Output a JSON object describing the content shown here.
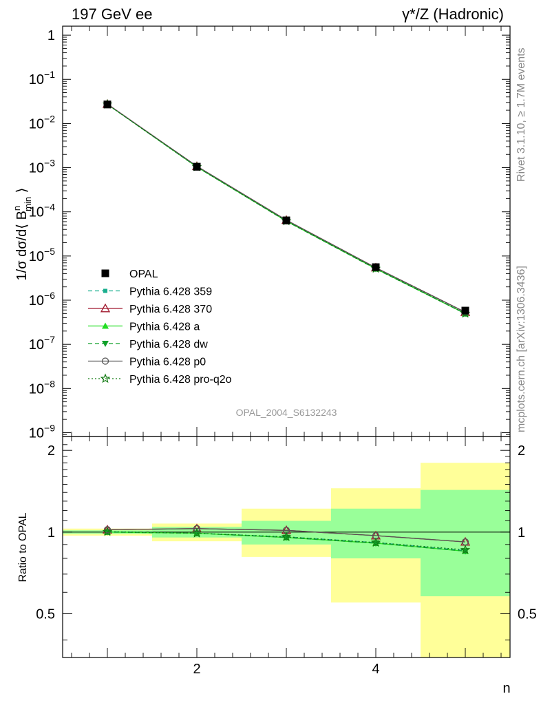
{
  "header": {
    "left": "197 GeV ee",
    "right": "γ*/Z (Hadronic)"
  },
  "side": {
    "rivet": "Rivet 3.1.10, ≥ 1.7M events",
    "mcplots": "mcplots.cern.ch [arXiv:1306.3436]"
  },
  "watermark": "OPAL_2004_S6132243",
  "chart_data": [
    {
      "type": "line",
      "panel": "main",
      "ylabel": "1/σ dσ/d⟨ B^n_min ⟩",
      "yscale": "log",
      "xlim": [
        0.5,
        5.5
      ],
      "ylim": [
        7e-10,
        2
      ],
      "y_ticks": [
        {
          "base": "1",
          "exp": ""
        },
        {
          "base": "10",
          "exp": "−1"
        },
        {
          "base": "10",
          "exp": "−2"
        },
        {
          "base": "10",
          "exp": "−3"
        },
        {
          "base": "10",
          "exp": "−4"
        },
        {
          "base": "10",
          "exp": "−5"
        },
        {
          "base": "10",
          "exp": "−6"
        },
        {
          "base": "10",
          "exp": "−7"
        },
        {
          "base": "10",
          "exp": "−8"
        },
        {
          "base": "10",
          "exp": "−9"
        }
      ],
      "x": [
        1,
        2,
        3,
        4,
        5
      ],
      "series": [
        {
          "name": "OPAL",
          "values": [
            0.027,
            0.00105,
            6.4e-05,
            5.6e-06,
            5.8e-07
          ],
          "color": "#000000",
          "marker": "square"
        },
        {
          "name": "Pythia 6.428 359",
          "values": [
            0.0272,
            0.00104,
            6.2e-05,
            5.2e-06,
            5e-07
          ],
          "color": "#1aae8e",
          "marker": "small-square",
          "dash": "dashed"
        },
        {
          "name": "Pythia 6.428 370",
          "values": [
            0.0275,
            0.00108,
            6.5e-05,
            5.45e-06,
            5.35e-07
          ],
          "color": "#a0182d",
          "marker": "open-triangle",
          "dash": "solid"
        },
        {
          "name": "Pythia 6.428 a",
          "values": [
            0.0272,
            0.00104,
            6.2e-05,
            5.15e-06,
            4.95e-07
          ],
          "color": "#22dd22",
          "marker": "filled-triangle",
          "dash": "solid"
        },
        {
          "name": "Pythia 6.428 dw",
          "values": [
            0.0271,
            0.00104,
            6.15e-05,
            5.1e-06,
            4.95e-07
          ],
          "color": "#10a02a",
          "marker": "down-triangle",
          "dash": "dashed"
        },
        {
          "name": "Pythia 6.428 p0",
          "values": [
            0.0275,
            0.00108,
            6.5e-05,
            5.45e-06,
            5.35e-07
          ],
          "color": "#555555",
          "marker": "open-circle",
          "dash": "solid"
        },
        {
          "name": "Pythia 6.428 pro-q2o",
          "values": [
            0.0272,
            0.00104,
            6.2e-05,
            5.2e-06,
            5e-07
          ],
          "color": "#127a12",
          "marker": "star",
          "dash": "dotted"
        }
      ]
    },
    {
      "type": "line",
      "panel": "ratio",
      "ylabel": "Ratio to OPAL",
      "xlabel": "n",
      "yscale": "log",
      "xlim": [
        0.5,
        5.5
      ],
      "ylim": [
        0.35,
        2.2
      ],
      "x_tick_labels": [
        "2",
        "4"
      ],
      "y_tick_labels": [
        "2",
        "1",
        "0.5"
      ],
      "bins": [
        {
          "lo": 0.5,
          "hi": 1.5,
          "stat": [
            0.985,
            1.015
          ],
          "total": [
            0.97,
            1.03
          ]
        },
        {
          "lo": 1.5,
          "hi": 2.5,
          "stat": [
            0.955,
            1.045
          ],
          "total": [
            0.925,
            1.075
          ]
        },
        {
          "lo": 2.5,
          "hi": 3.5,
          "stat": [
            0.9,
            1.1
          ],
          "total": [
            0.81,
            1.22
          ]
        },
        {
          "lo": 3.5,
          "hi": 4.5,
          "stat": [
            0.8,
            1.22
          ],
          "total": [
            0.55,
            1.45
          ]
        },
        {
          "lo": 4.5,
          "hi": 5.5,
          "stat": [
            0.58,
            1.43
          ],
          "total": [
            0.34,
            1.8
          ]
        }
      ],
      "band_colors": {
        "stat": "#99ff99",
        "total": "#ffff99"
      },
      "x": [
        1,
        2,
        3,
        4,
        5
      ],
      "series": [
        {
          "name": "Pythia 6.428 359",
          "values": [
            1.003,
            0.99,
            0.96,
            0.915,
            0.855
          ],
          "color": "#1aae8e",
          "marker": "small-square",
          "dash": "dashed"
        },
        {
          "name": "Pythia 6.428 370",
          "values": [
            1.02,
            1.03,
            1.015,
            0.97,
            0.92
          ],
          "color": "#a0182d",
          "marker": "open-triangle",
          "dash": "solid"
        },
        {
          "name": "Pythia 6.428 a",
          "values": [
            1.0,
            0.99,
            0.955,
            0.91,
            0.85
          ],
          "color": "#22dd22",
          "marker": "filled-triangle",
          "dash": "solid"
        },
        {
          "name": "Pythia 6.428 dw",
          "values": [
            1.0,
            0.99,
            0.955,
            0.91,
            0.85
          ],
          "color": "#10a02a",
          "marker": "down-triangle",
          "dash": "dashed"
        },
        {
          "name": "Pythia 6.428 p0",
          "values": [
            1.02,
            1.03,
            1.015,
            0.97,
            0.92
          ],
          "color": "#555555",
          "marker": "open-circle",
          "dash": "solid"
        },
        {
          "name": "Pythia 6.428 pro-q2o",
          "values": [
            1.003,
            0.99,
            0.96,
            0.915,
            0.86
          ],
          "color": "#127a12",
          "marker": "star",
          "dash": "dotted"
        }
      ]
    }
  ]
}
